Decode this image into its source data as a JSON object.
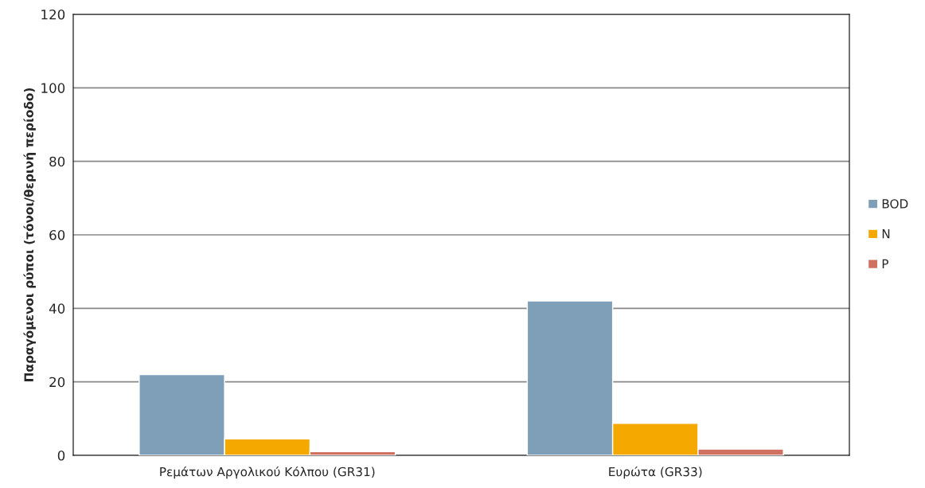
{
  "chart_data": {
    "type": "bar",
    "ylabel": "Παραγόμενοι ρύποι (τόνοι/θερινή περίοδο)",
    "categories": [
      "Ρεμάτων Αργολικού Κόλπου (GR31)",
      "Ευρώτα (GR33)"
    ],
    "series": [
      {
        "name": "BOD",
        "color": "#7f9fb8",
        "values": [
          22,
          42
        ]
      },
      {
        "name": "N",
        "color": "#f5a800",
        "values": [
          4.5,
          8.7
        ]
      },
      {
        "name": "P",
        "color": "#d07060",
        "values": [
          1.0,
          1.7
        ]
      }
    ],
    "ylim": [
      0,
      120
    ],
    "yticks": [
      0,
      20,
      40,
      60,
      80,
      100,
      120
    ],
    "grid": "y",
    "legend": "right"
  }
}
